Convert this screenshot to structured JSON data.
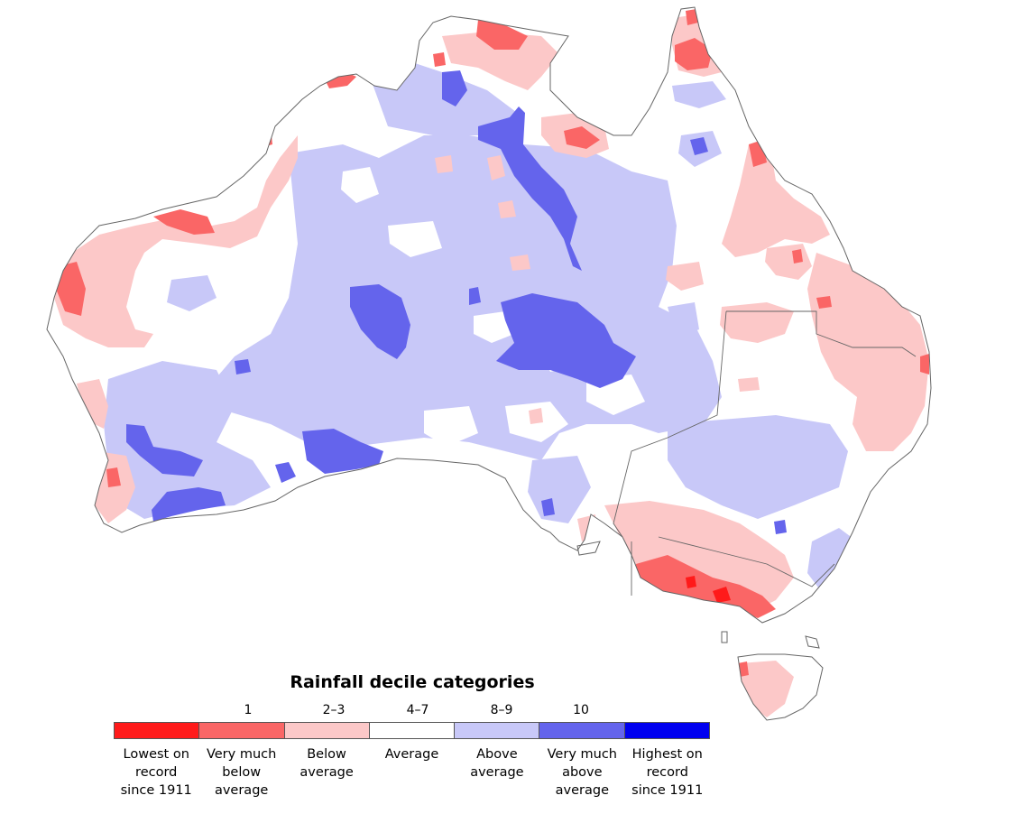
{
  "legend": {
    "title": "Rainfall decile categories",
    "top_labels": [
      "1",
      "2–3",
      "4–7",
      "8–9",
      "10"
    ],
    "categories": [
      {
        "label": "Lowest on\nrecord\nsince 1911",
        "color": "#ff1a1a"
      },
      {
        "label": "Very much\nbelow\naverage",
        "color": "#fa6666"
      },
      {
        "label": "Below\naverage",
        "color": "#fcc8c8"
      },
      {
        "label": "Average",
        "color": "#ffffff"
      },
      {
        "label": "Above\naverage",
        "color": "#c8c8f8"
      },
      {
        "label": "Very much\nabove\naverage",
        "color": "#6464ec"
      },
      {
        "label": "Highest on\nrecord\nsince 1911",
        "color": "#0000f0"
      }
    ]
  },
  "map": {
    "outline_color": "#666666"
  }
}
